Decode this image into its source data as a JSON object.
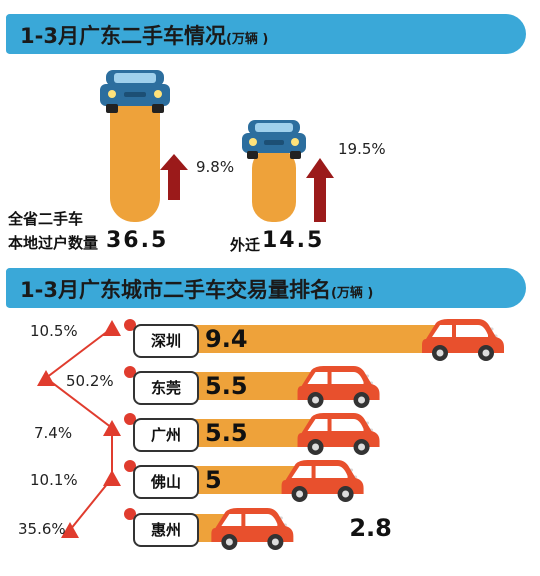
{
  "section1": {
    "title": "1-3月广东二手车情况",
    "unit": "(万辆 )"
  },
  "summary": {
    "local": {
      "label_line1": "全省二手车",
      "label_line2": "本地过户数量",
      "value": "36.5",
      "growth": "9.8%"
    },
    "migrate": {
      "label": "外迁",
      "value": "14.5",
      "growth": "19.5%"
    }
  },
  "section2": {
    "title": "1-3月广东城市二手车交易量排名",
    "unit": "(万辆 )"
  },
  "colors": {
    "banner": "#3aa8d8",
    "bar": "#eea23a",
    "arrow": "#9b1a1a",
    "car_red": "#e8502d",
    "car_blue": "#2c6e9e",
    "triangle": "#e03c2e"
  },
  "chart_data": {
    "type": "bar",
    "title": "1-3月广东城市二手车交易量排名",
    "unit": "(万辆 )",
    "categories": [
      "深圳",
      "东莞",
      "广州",
      "佛山",
      "惠州"
    ],
    "values": [
      9.4,
      5.5,
      5.5,
      5,
      2.8
    ],
    "value_labels": [
      "9.4",
      "5.5",
      "5.5",
      "5",
      "2.8"
    ],
    "growth": [
      "10.5%",
      "50.2%",
      "7.4%",
      "10.1%",
      "35.6%"
    ]
  }
}
